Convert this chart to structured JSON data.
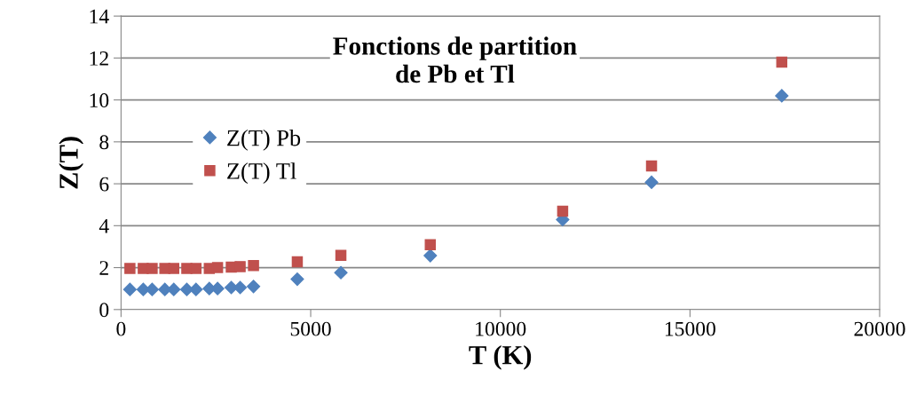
{
  "chart_data": {
    "type": "scatter",
    "title": "Fonctions de partition\nde Pb et Tl",
    "xlabel": "T (K)",
    "ylabel": "Z(T)",
    "x": [
      234,
      586,
      820,
      1155,
      1390,
      1734,
      1976,
      2327,
      2545,
      2906,
      3140,
      3492,
      4647,
      5796,
      8153,
      11643,
      13986,
      17420
    ],
    "series": [
      {
        "name": "Z(T) Pb",
        "color": "#4f81bd",
        "marker": "diamond",
        "values": [
          0.96,
          0.96,
          0.96,
          0.96,
          0.96,
          0.96,
          0.96,
          1.0,
          1.0,
          1.05,
          1.05,
          1.1,
          1.45,
          1.76,
          2.57,
          4.29,
          6.07,
          10.2
        ]
      },
      {
        "name": "Z(T) Tl",
        "color": "#c0504d",
        "marker": "square",
        "values": [
          1.96,
          1.96,
          1.96,
          1.96,
          1.96,
          1.96,
          1.96,
          1.96,
          2.0,
          2.02,
          2.05,
          2.1,
          2.28,
          2.58,
          3.09,
          4.69,
          6.85,
          11.8
        ]
      }
    ],
    "xlim": [
      0,
      20000
    ],
    "xticks": [
      0,
      5000,
      10000,
      15000,
      20000
    ],
    "ylim": [
      0,
      14
    ],
    "yticks": [
      0,
      2,
      4,
      6,
      8,
      10,
      12,
      14
    ],
    "grid": "y",
    "legend": "top left"
  }
}
